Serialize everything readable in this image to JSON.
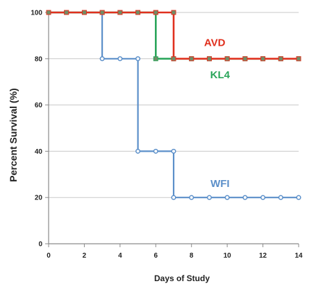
{
  "chart_data": {
    "type": "line",
    "step": true,
    "title": "",
    "xlabel": "Days of Study",
    "ylabel": "Percent Survival (%)",
    "xlim": [
      0,
      14
    ],
    "ylim": [
      0,
      100
    ],
    "xticks": [
      0,
      2,
      4,
      6,
      8,
      10,
      12,
      14
    ],
    "yticks": [
      0,
      20,
      40,
      60,
      80,
      100
    ],
    "grid": true,
    "series": [
      {
        "name": "AVD",
        "color": "#e0301e",
        "x": [
          0,
          1,
          2,
          3,
          4,
          5,
          6,
          7,
          7,
          8,
          9,
          10,
          11,
          12,
          13,
          14
        ],
        "y": [
          100,
          100,
          100,
          100,
          100,
          100,
          100,
          100,
          80,
          80,
          80,
          80,
          80,
          80,
          80,
          80
        ]
      },
      {
        "name": "KL4",
        "color": "#2aa55a",
        "x": [
          0,
          1,
          2,
          3,
          4,
          5,
          6,
          6,
          7,
          8,
          9,
          10,
          11,
          12,
          13,
          14
        ],
        "y": [
          100,
          100,
          100,
          100,
          100,
          100,
          100,
          80,
          80,
          80,
          80,
          80,
          80,
          80,
          80,
          80
        ]
      },
      {
        "name": "WFI",
        "color": "#5b8fc9",
        "x": [
          0,
          1,
          2,
          3,
          3,
          4,
          5,
          5,
          6,
          7,
          7,
          8,
          9,
          10,
          11,
          12,
          13,
          14
        ],
        "y": [
          100,
          100,
          100,
          100,
          80,
          80,
          80,
          40,
          40,
          40,
          20,
          20,
          20,
          20,
          20,
          20,
          20,
          20
        ]
      }
    ]
  }
}
